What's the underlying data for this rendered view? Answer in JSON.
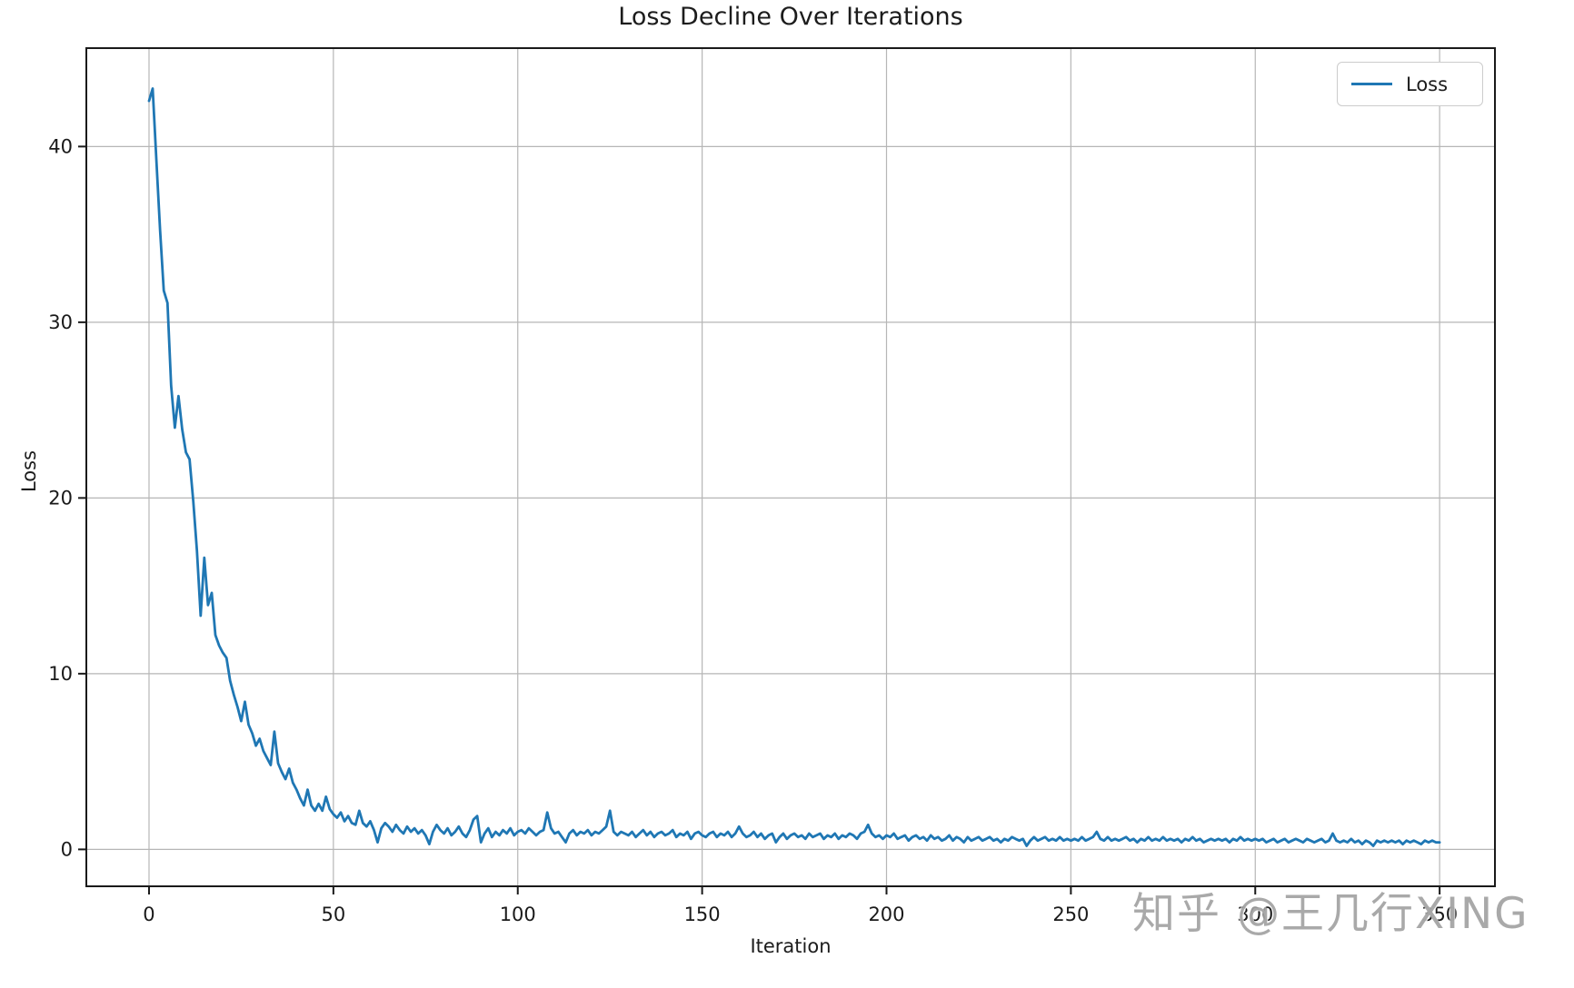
{
  "watermark": {
    "text": "知乎 @王几行XING",
    "color": "#949494"
  },
  "chart_data": {
    "type": "line",
    "title": "Loss Decline Over Iterations",
    "xlabel": "Iteration",
    "ylabel": "Loss",
    "grid": true,
    "legend": {
      "position": "upper right",
      "entries": [
        "Loss"
      ]
    },
    "xlim": [
      -17,
      365
    ],
    "ylim": [
      -2.1,
      45.6
    ],
    "xticks": [
      0,
      50,
      100,
      150,
      200,
      250,
      300,
      350
    ],
    "yticks": [
      0,
      10,
      20,
      30,
      40
    ],
    "line_color": "#1f77b4",
    "grid_color": "#b6b6b6",
    "axis_color": "#1a1a1a",
    "series": [
      {
        "name": "Loss",
        "x_start": 0,
        "x_step": 1,
        "values": [
          42.6,
          43.3,
          39.2,
          35.2,
          31.8,
          31.1,
          26.4,
          24.0,
          25.8,
          23.9,
          22.6,
          22.2,
          19.8,
          17.0,
          13.3,
          16.6,
          13.9,
          14.6,
          12.2,
          11.6,
          11.2,
          10.9,
          9.6,
          8.8,
          8.1,
          7.3,
          8.4,
          7.1,
          6.6,
          5.9,
          6.3,
          5.6,
          5.2,
          4.8,
          6.7,
          4.9,
          4.4,
          4.0,
          4.6,
          3.8,
          3.4,
          2.9,
          2.5,
          3.4,
          2.5,
          2.2,
          2.6,
          2.2,
          3.0,
          2.3,
          2.0,
          1.8,
          2.1,
          1.6,
          1.9,
          1.5,
          1.4,
          2.2,
          1.5,
          1.3,
          1.6,
          1.1,
          0.4,
          1.2,
          1.5,
          1.3,
          1.0,
          1.4,
          1.1,
          0.9,
          1.3,
          1.0,
          1.2,
          0.9,
          1.1,
          0.8,
          0.3,
          1.0,
          1.4,
          1.1,
          0.9,
          1.2,
          0.8,
          1.0,
          1.3,
          0.9,
          0.7,
          1.1,
          1.7,
          1.9,
          0.4,
          0.9,
          1.2,
          0.7,
          1.0,
          0.8,
          1.1,
          0.9,
          1.2,
          0.8,
          1.0,
          1.1,
          0.9,
          1.2,
          1.0,
          0.8,
          1.0,
          1.1,
          2.1,
          1.2,
          0.9,
          1.0,
          0.7,
          0.4,
          0.9,
          1.1,
          0.8,
          1.0,
          0.9,
          1.1,
          0.8,
          1.0,
          0.9,
          1.1,
          1.3,
          2.2,
          1.0,
          0.8,
          1.0,
          0.9,
          0.8,
          1.0,
          0.7,
          0.9,
          1.1,
          0.8,
          1.0,
          0.7,
          0.9,
          1.0,
          0.8,
          0.9,
          1.1,
          0.7,
          0.9,
          0.8,
          1.0,
          0.6,
          0.9,
          1.0,
          0.8,
          0.7,
          0.9,
          1.0,
          0.7,
          0.9,
          0.8,
          1.0,
          0.7,
          0.9,
          1.3,
          0.9,
          0.7,
          0.8,
          1.0,
          0.7,
          0.9,
          0.6,
          0.8,
          0.9,
          0.4,
          0.7,
          0.9,
          0.6,
          0.8,
          0.9,
          0.7,
          0.8,
          0.6,
          0.9,
          0.7,
          0.8,
          0.9,
          0.6,
          0.8,
          0.7,
          0.9,
          0.6,
          0.8,
          0.7,
          0.9,
          0.8,
          0.6,
          0.9,
          1.0,
          1.4,
          0.9,
          0.7,
          0.8,
          0.6,
          0.8,
          0.7,
          0.9,
          0.6,
          0.7,
          0.8,
          0.5,
          0.7,
          0.8,
          0.6,
          0.7,
          0.5,
          0.8,
          0.6,
          0.7,
          0.5,
          0.6,
          0.8,
          0.5,
          0.7,
          0.6,
          0.4,
          0.7,
          0.5,
          0.6,
          0.7,
          0.5,
          0.6,
          0.7,
          0.5,
          0.6,
          0.4,
          0.6,
          0.5,
          0.7,
          0.6,
          0.5,
          0.6,
          0.2,
          0.5,
          0.7,
          0.5,
          0.6,
          0.7,
          0.5,
          0.6,
          0.5,
          0.7,
          0.5,
          0.6,
          0.5,
          0.6,
          0.5,
          0.7,
          0.5,
          0.6,
          0.7,
          1.0,
          0.6,
          0.5,
          0.7,
          0.5,
          0.6,
          0.5,
          0.6,
          0.7,
          0.5,
          0.6,
          0.4,
          0.6,
          0.5,
          0.7,
          0.5,
          0.6,
          0.5,
          0.7,
          0.5,
          0.6,
          0.5,
          0.6,
          0.4,
          0.6,
          0.5,
          0.7,
          0.5,
          0.6,
          0.4,
          0.5,
          0.6,
          0.5,
          0.6,
          0.5,
          0.6,
          0.4,
          0.6,
          0.5,
          0.7,
          0.5,
          0.6,
          0.5,
          0.6,
          0.5,
          0.6,
          0.4,
          0.5,
          0.6,
          0.4,
          0.5,
          0.6,
          0.4,
          0.5,
          0.6,
          0.5,
          0.4,
          0.6,
          0.5,
          0.4,
          0.5,
          0.6,
          0.4,
          0.5,
          0.9,
          0.5,
          0.4,
          0.5,
          0.4,
          0.6,
          0.4,
          0.5,
          0.3,
          0.5,
          0.4,
          0.2,
          0.5,
          0.4,
          0.5,
          0.4,
          0.5,
          0.4,
          0.5,
          0.3,
          0.5,
          0.4,
          0.5,
          0.4,
          0.3,
          0.5,
          0.4,
          0.5,
          0.4,
          0.4
        ]
      }
    ]
  }
}
